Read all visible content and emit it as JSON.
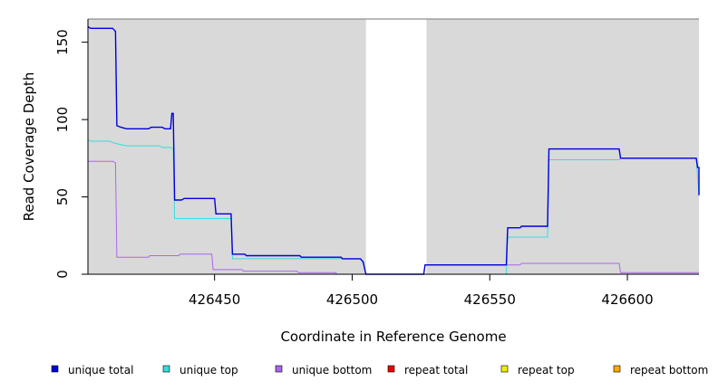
{
  "chart_data": {
    "type": "line",
    "title": "",
    "xlabel": "Coordinate in Reference Genome",
    "ylabel": "Read Coverage Depth",
    "xlim": [
      426404,
      426626
    ],
    "ylim": [
      0,
      165
    ],
    "x_ticks": [
      426450,
      426500,
      426550,
      426600
    ],
    "y_ticks": [
      0,
      50,
      100,
      150
    ],
    "grid": false,
    "background": "#d9d9d9",
    "gap_regions": [
      [
        426505,
        426527
      ]
    ],
    "legend_position": "bottom",
    "series": [
      {
        "name": "unique total",
        "color": "#0000dd",
        "points": [
          [
            426404,
            160
          ],
          [
            426405,
            159
          ],
          [
            426413,
            159
          ],
          [
            426414,
            157
          ],
          [
            426414.5,
            96
          ],
          [
            426416,
            95
          ],
          [
            426418,
            94
          ],
          [
            426426,
            94
          ],
          [
            426427,
            95
          ],
          [
            426431,
            95
          ],
          [
            426432,
            94
          ],
          [
            426434,
            94
          ],
          [
            426434.5,
            104
          ],
          [
            426435,
            104
          ],
          [
            426435.5,
            48
          ],
          [
            426438,
            48
          ],
          [
            426439,
            49
          ],
          [
            426450,
            49
          ],
          [
            426450.5,
            39
          ],
          [
            426456,
            39
          ],
          [
            426456.5,
            13
          ],
          [
            426461,
            13
          ],
          [
            426461.5,
            12
          ],
          [
            426481,
            12
          ],
          [
            426481.5,
            11
          ],
          [
            426496,
            11
          ],
          [
            426496.5,
            10
          ],
          [
            426503,
            10
          ],
          [
            426504,
            8
          ],
          [
            426505,
            0
          ],
          [
            426526,
            0
          ],
          [
            426526.5,
            6
          ],
          [
            426556,
            6
          ],
          [
            426556.5,
            30
          ],
          [
            426561,
            30
          ],
          [
            426561.5,
            31
          ],
          [
            426571,
            31
          ],
          [
            426571.5,
            81
          ],
          [
            426597,
            81
          ],
          [
            426597.5,
            75
          ],
          [
            426625,
            75
          ],
          [
            426625.5,
            69
          ],
          [
            426626,
            69
          ],
          [
            426626,
            51
          ]
        ]
      },
      {
        "name": "unique top",
        "color": "#33dddd",
        "points": [
          [
            426404,
            87
          ],
          [
            426405,
            86
          ],
          [
            426412,
            86
          ],
          [
            426413,
            85
          ],
          [
            426418,
            83
          ],
          [
            426430,
            83
          ],
          [
            426431,
            82
          ],
          [
            426434,
            82
          ],
          [
            426435,
            81
          ],
          [
            426435.5,
            36
          ],
          [
            426456,
            36
          ],
          [
            426456.5,
            10
          ],
          [
            426496,
            10
          ],
          [
            426503,
            10
          ],
          [
            426504,
            7
          ],
          [
            426505,
            0
          ],
          [
            426556,
            0
          ],
          [
            426556.5,
            24
          ],
          [
            426571,
            24
          ],
          [
            426571.5,
            74
          ],
          [
            426597,
            74
          ],
          [
            426597.5,
            75
          ],
          [
            426625,
            75
          ],
          [
            426626,
            51
          ]
        ]
      },
      {
        "name": "unique bottom",
        "color": "#aa66ee",
        "points": [
          [
            426404,
            73
          ],
          [
            426413,
            73
          ],
          [
            426414,
            72
          ],
          [
            426414.5,
            11
          ],
          [
            426426,
            11
          ],
          [
            426426.5,
            12
          ],
          [
            426437,
            12
          ],
          [
            426437.5,
            13
          ],
          [
            426449,
            13
          ],
          [
            426449.5,
            3
          ],
          [
            426460,
            3
          ],
          [
            426460.5,
            2
          ],
          [
            426480,
            2
          ],
          [
            426480.5,
            1
          ],
          [
            426494,
            1
          ],
          [
            426494.5,
            0
          ],
          [
            426505,
            0
          ],
          [
            426526,
            0
          ],
          [
            426526.5,
            6
          ],
          [
            426556,
            6
          ],
          [
            426561,
            6
          ],
          [
            426561.5,
            7
          ],
          [
            426597,
            7
          ],
          [
            426597.5,
            1
          ],
          [
            426626,
            1
          ]
        ]
      },
      {
        "name": "repeat total",
        "color": "#ee0000",
        "points": [
          [
            426404,
            0
          ],
          [
            426626,
            0
          ]
        ]
      },
      {
        "name": "repeat top",
        "color": "#eeee00",
        "points": [
          [
            426404,
            0
          ],
          [
            426626,
            0
          ]
        ]
      },
      {
        "name": "repeat bottom",
        "color": "#ffaa00",
        "points": [
          [
            426404,
            0
          ],
          [
            426626,
            0
          ]
        ]
      }
    ]
  }
}
